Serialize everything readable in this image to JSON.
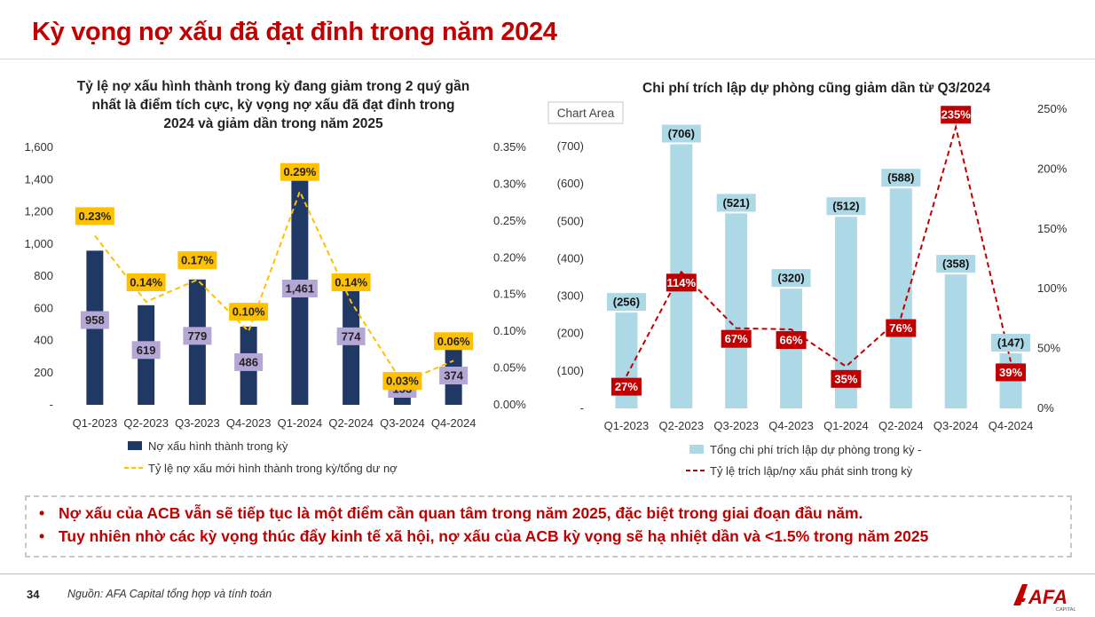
{
  "page_title": "Kỳ vọng nợ xấu đã đạt đỉnh trong năm 2024",
  "chart_data": [
    {
      "type": "bar",
      "title_lines": [
        "Tỷ lệ nợ xấu hình thành trong kỳ đang giảm trong 2 quý gần",
        "nhất là điểm tích cực, kỳ vọng nợ xấu đã đạt đỉnh trong",
        "2024 và giảm dần trong năm 2025"
      ],
      "categories": [
        "Q1-2023",
        "Q2-2023",
        "Q3-2023",
        "Q4-2023",
        "Q1-2024",
        "Q2-2024",
        "Q3-2024",
        "Q4-2024"
      ],
      "series": [
        {
          "name": "Nợ xấu hình thành trong kỳ",
          "type": "bar",
          "axis": "left",
          "color": "#1f3864",
          "values": [
            958,
            619,
            779,
            486,
            1461,
            774,
            153,
            374
          ],
          "labels": [
            "958",
            "619",
            "779",
            "486",
            "1,461",
            "774",
            "153",
            "374"
          ]
        },
        {
          "name": "Tỷ lệ nợ xấu mới hình thành trong kỳ/tổng dư nợ",
          "type": "line",
          "axis": "right",
          "color": "#ffc000",
          "values": [
            0.23,
            0.14,
            0.17,
            0.1,
            0.29,
            0.14,
            0.03,
            0.06
          ],
          "labels": [
            "0.23%",
            "0.14%",
            "0.17%",
            "0.10%",
            "0.29%",
            "0.14%",
            "0.03%",
            "0.06%"
          ]
        }
      ],
      "y_left": {
        "min": 0,
        "max": 1600,
        "ticks": [
          "-",
          "200",
          "400",
          "600",
          "800",
          "1,000",
          "1,200",
          "1,400",
          "1,600"
        ]
      },
      "y_right": {
        "min": 0,
        "max": 0.35,
        "ticks": [
          "0.00%",
          "0.05%",
          "0.10%",
          "0.15%",
          "0.20%",
          "0.25%",
          "0.30%",
          "0.35%"
        ]
      },
      "legend_position": "bottom"
    },
    {
      "type": "bar",
      "title_lines": [
        "Chi phí trích lập dự phòng cũng giảm dần từ Q3/2024"
      ],
      "chart_area_tag": "Chart Area",
      "categories": [
        "Q1-2023",
        "Q2-2023",
        "Q3-2023",
        "Q4-2023",
        "Q1-2024",
        "Q2-2024",
        "Q3-2024",
        "Q4-2024"
      ],
      "series": [
        {
          "name": "Tổng chi phí trích lập dự phòng trong kỳ  -",
          "type": "bar",
          "axis": "left",
          "color": "#add8e6",
          "values": [
            -256,
            -706,
            -521,
            -320,
            -512,
            -588,
            -358,
            -147
          ],
          "labels": [
            "(256)",
            "(706)",
            "(521)",
            "(320)",
            "(512)",
            "(588)",
            "(358)",
            "(147)"
          ]
        },
        {
          "name": "Tỷ lệ trích lập/nợ xấu phát sinh trong kỳ",
          "type": "line",
          "axis": "right",
          "color": "#c00000",
          "values": [
            27,
            114,
            67,
            66,
            35,
            76,
            235,
            39
          ],
          "labels": [
            "27%",
            "114%",
            "67%",
            "66%",
            "35%",
            "76%",
            "235%",
            "39%"
          ]
        }
      ],
      "y_left": {
        "min": 0,
        "max": -750,
        "ticks": [
          "-",
          "(100)",
          "(200)",
          "(300)",
          "(400)",
          "(500)",
          "(600)",
          "(700)"
        ]
      },
      "y_right": {
        "min": 0,
        "max": 250,
        "ticks": [
          "0%",
          "50%",
          "100%",
          "150%",
          "200%",
          "250%"
        ]
      },
      "legend_position": "bottom"
    }
  ],
  "bullets": [
    "Nợ xấu của ACB vẫn sẽ tiếp tục là một điểm cần quan tâm trong năm 2025, đặc biệt trong giai đoạn đầu năm.",
    "Tuy nhiên nhờ các kỳ vọng thúc đẩy kinh tế xã hội, nợ xấu của ACB kỳ vọng sẽ hạ nhiệt dần và <1.5% trong năm 2025"
  ],
  "page_number": "34",
  "source": "Nguồn: AFA Capital tổng hợp và tính toán",
  "logo_text": "AFA",
  "logo_subtext": "CAPITAL",
  "colors": {
    "accent": "#c00000",
    "navy": "#1f3864",
    "gold": "#ffc000",
    "lightblue": "#add8e6",
    "lavender": "#b4a7d6"
  }
}
